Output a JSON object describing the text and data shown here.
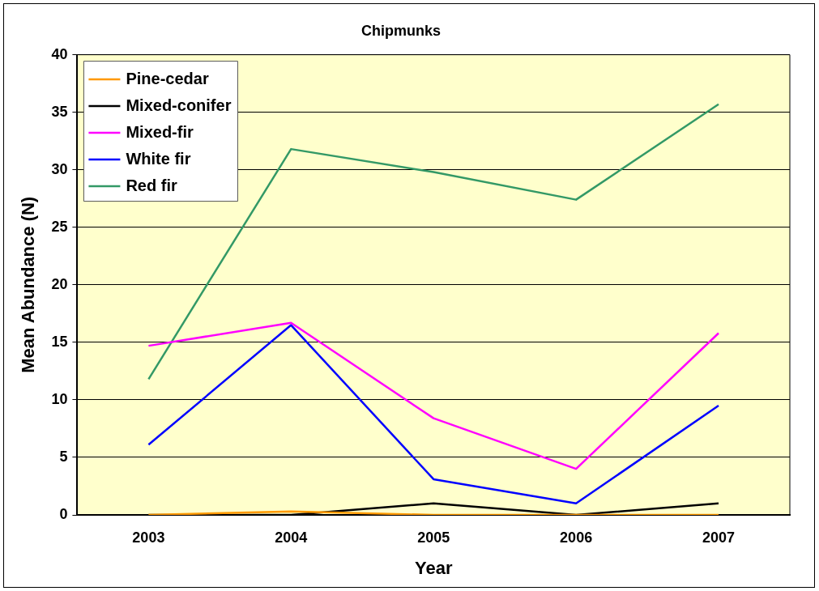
{
  "chart_data": {
    "type": "line",
    "title": "Chipmunks",
    "xlabel": "Year",
    "ylabel": "Mean Abundance (N)",
    "categories": [
      "2003",
      "2004",
      "2005",
      "2006",
      "2007"
    ],
    "series": [
      {
        "name": "Pine-cedar",
        "color": "#ff9900",
        "values": [
          0,
          0.3,
          0,
          0,
          0
        ]
      },
      {
        "name": "Mixed-conifer",
        "color": "#000000",
        "values": [
          0,
          0,
          1,
          0,
          1
        ]
      },
      {
        "name": "Mixed-fir",
        "color": "#ff00ff",
        "values": [
          14.7,
          16.7,
          8.4,
          4.0,
          15.8
        ]
      },
      {
        "name": "White fir",
        "color": "#0000ff",
        "values": [
          6.1,
          16.5,
          3.1,
          1.0,
          9.5
        ]
      },
      {
        "name": "Red fir",
        "color": "#339966",
        "values": [
          11.8,
          31.8,
          29.8,
          27.4,
          35.7
        ]
      }
    ],
    "ylim": [
      0,
      40
    ],
    "yticks": [
      0,
      5,
      10,
      15,
      20,
      25,
      30,
      35,
      40
    ],
    "grid": "y",
    "legend": "top left",
    "marker": "none",
    "line_style": "solid"
  }
}
